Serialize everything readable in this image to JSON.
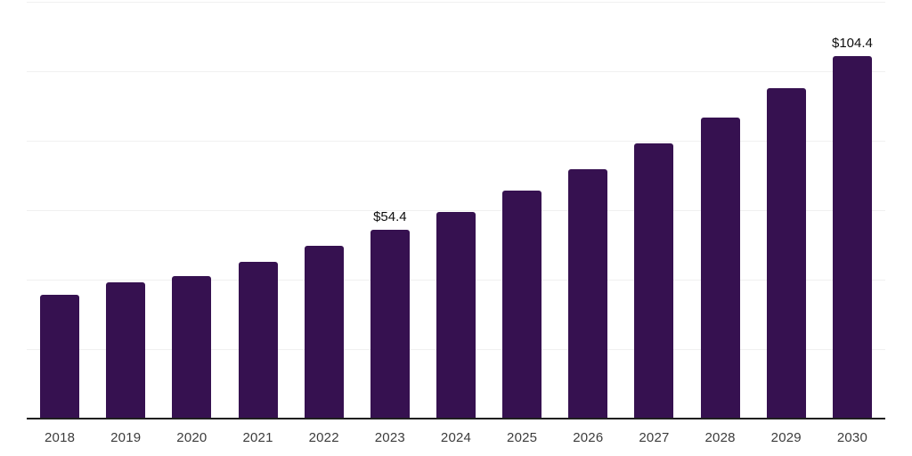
{
  "chart_data": {
    "type": "bar",
    "title": "",
    "xlabel": "",
    "ylabel": "",
    "categories": [
      "2018",
      "2019",
      "2020",
      "2021",
      "2022",
      "2023",
      "2024",
      "2025",
      "2026",
      "2027",
      "2028",
      "2029",
      "2030"
    ],
    "values": [
      35.7,
      39.3,
      40.9,
      45.2,
      49.8,
      54.4,
      59.4,
      65.7,
      71.7,
      79.2,
      86.7,
      95.1,
      104.4
    ],
    "annotations": [
      {
        "category": "2023",
        "text": "$54.4"
      },
      {
        "category": "2030",
        "text": "$104.4"
      }
    ],
    "ylim": [
      0,
      120
    ],
    "gridline_step": 20,
    "grid": "horizontal-only",
    "legend": "none",
    "y_tick_labels_visible": false,
    "colors": {
      "bar": "#361150",
      "axis_line": "#1f1f1f",
      "gridline": "#f0f0f0",
      "tick_label": "#3c3c3c",
      "data_label": "#0d0d0d",
      "background": "#ffffff"
    }
  }
}
